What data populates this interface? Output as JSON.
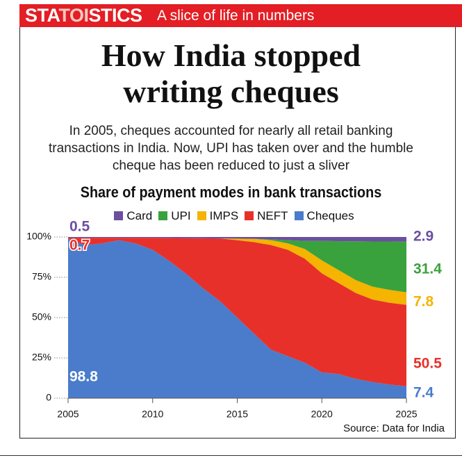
{
  "header": {
    "brand_parts": [
      "STA",
      "TOI",
      "STICS"
    ],
    "tagline": "A slice of life in numbers"
  },
  "chart_data": {
    "type": "stacked_area",
    "title": "How India stopped writing cheques",
    "subtitle": "In 2005, cheques accounted for nearly all retail banking transactions in India. Now, UPI has taken over and the humble cheque has been reduced to just a sliver",
    "chart_title": "Share of payment modes in bank transactions",
    "source": "Source: Data for India",
    "x": [
      2005,
      2006,
      2007,
      2008,
      2009,
      2010,
      2011,
      2012,
      2013,
      2014,
      2015,
      2016,
      2017,
      2018,
      2019,
      2020,
      2021,
      2022,
      2023,
      2024,
      2025
    ],
    "series": [
      {
        "name": "Card",
        "color": "#6b4fa0",
        "values": [
          0.5,
          0.5,
          0.5,
          0.5,
          0.5,
          0.5,
          0.6,
          0.7,
          0.8,
          0.9,
          1,
          1.2,
          1.5,
          2,
          2.5,
          2.5,
          2.6,
          2.7,
          2.8,
          2.8,
          2.9
        ]
      },
      {
        "name": "UPI",
        "color": "#3aa23c",
        "values": [
          0,
          0,
          0,
          0,
          0,
          0,
          0,
          0,
          0,
          0,
          0,
          0,
          0.5,
          2,
          5,
          12,
          18,
          24,
          28,
          30,
          31.4
        ]
      },
      {
        "name": "IMPS",
        "color": "#f4b400",
        "values": [
          0,
          0,
          0,
          0,
          0,
          0,
          0,
          0,
          0,
          0,
          1,
          2,
          3,
          4,
          6,
          8,
          8,
          8,
          8,
          8,
          7.8
        ]
      },
      {
        "name": "NEFT",
        "color": "#e8302a",
        "values": [
          0.7,
          4.5,
          3.5,
          1.5,
          3.5,
          7.5,
          14.4,
          22.3,
          31.2,
          39.1,
          48,
          56.8,
          65,
          66,
          64.5,
          61.5,
          56.4,
          53.3,
          51.2,
          50.7,
          50.5
        ]
      },
      {
        "name": "Cheques",
        "color": "#4a7ccb",
        "values": [
          98.8,
          95,
          96,
          98,
          96,
          92,
          85,
          77,
          68,
          60,
          50,
          40,
          30,
          26,
          22,
          16,
          15,
          12,
          10,
          8.5,
          7.4
        ]
      }
    ],
    "xlim": [
      2005,
      2025
    ],
    "xticks": [
      2005,
      2010,
      2015,
      2020,
      2025
    ],
    "ylim": [
      0,
      100
    ],
    "yticks": [
      0,
      {
        "value": 25,
        "label": "25%"
      },
      {
        "value": 50,
        "label": "50%"
      },
      {
        "value": 75,
        "label": "75%"
      },
      {
        "value": 100,
        "label": "100%"
      }
    ]
  }
}
